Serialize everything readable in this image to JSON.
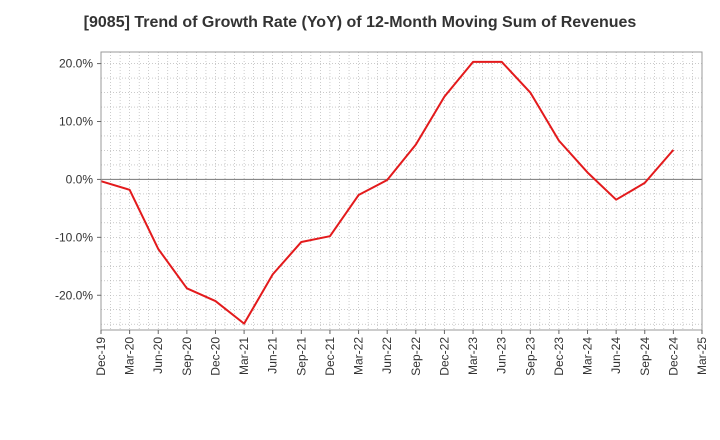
{
  "chart_data": {
    "type": "line",
    "title": "[9085]  Trend of Growth Rate (YoY) of 12-Month Moving Sum of Revenues",
    "xlabel": "",
    "ylabel": "",
    "x": [
      "Dec-19",
      "Mar-20",
      "Jun-20",
      "Sep-20",
      "Dec-20",
      "Mar-21",
      "Jun-21",
      "Sep-21",
      "Dec-21",
      "Mar-22",
      "Jun-22",
      "Sep-22",
      "Dec-22",
      "Mar-23",
      "Jun-23",
      "Sep-23",
      "Dec-23",
      "Mar-24",
      "Jun-24",
      "Sep-24",
      "Dec-24",
      "Mar-25"
    ],
    "ylim": [
      -26,
      22
    ],
    "yticks": [
      20,
      10,
      0,
      -10,
      -20
    ],
    "ytick_labels": [
      "20.0%",
      "10.0%",
      "0.0%",
      "-10.0%",
      "-20.0%"
    ],
    "grid": true,
    "series": [
      {
        "color": "#e31a1c",
        "values": [
          -0.3,
          -1.8,
          -12.0,
          -18.8,
          -21.0,
          -24.9,
          -16.4,
          -10.8,
          -9.8,
          -2.7,
          -0.1,
          6.0,
          14.3,
          20.3,
          20.3,
          15.0,
          6.7,
          1.2,
          -3.5,
          -0.6,
          5.1,
          null
        ]
      }
    ],
    "zero_line_color": "#777777"
  }
}
